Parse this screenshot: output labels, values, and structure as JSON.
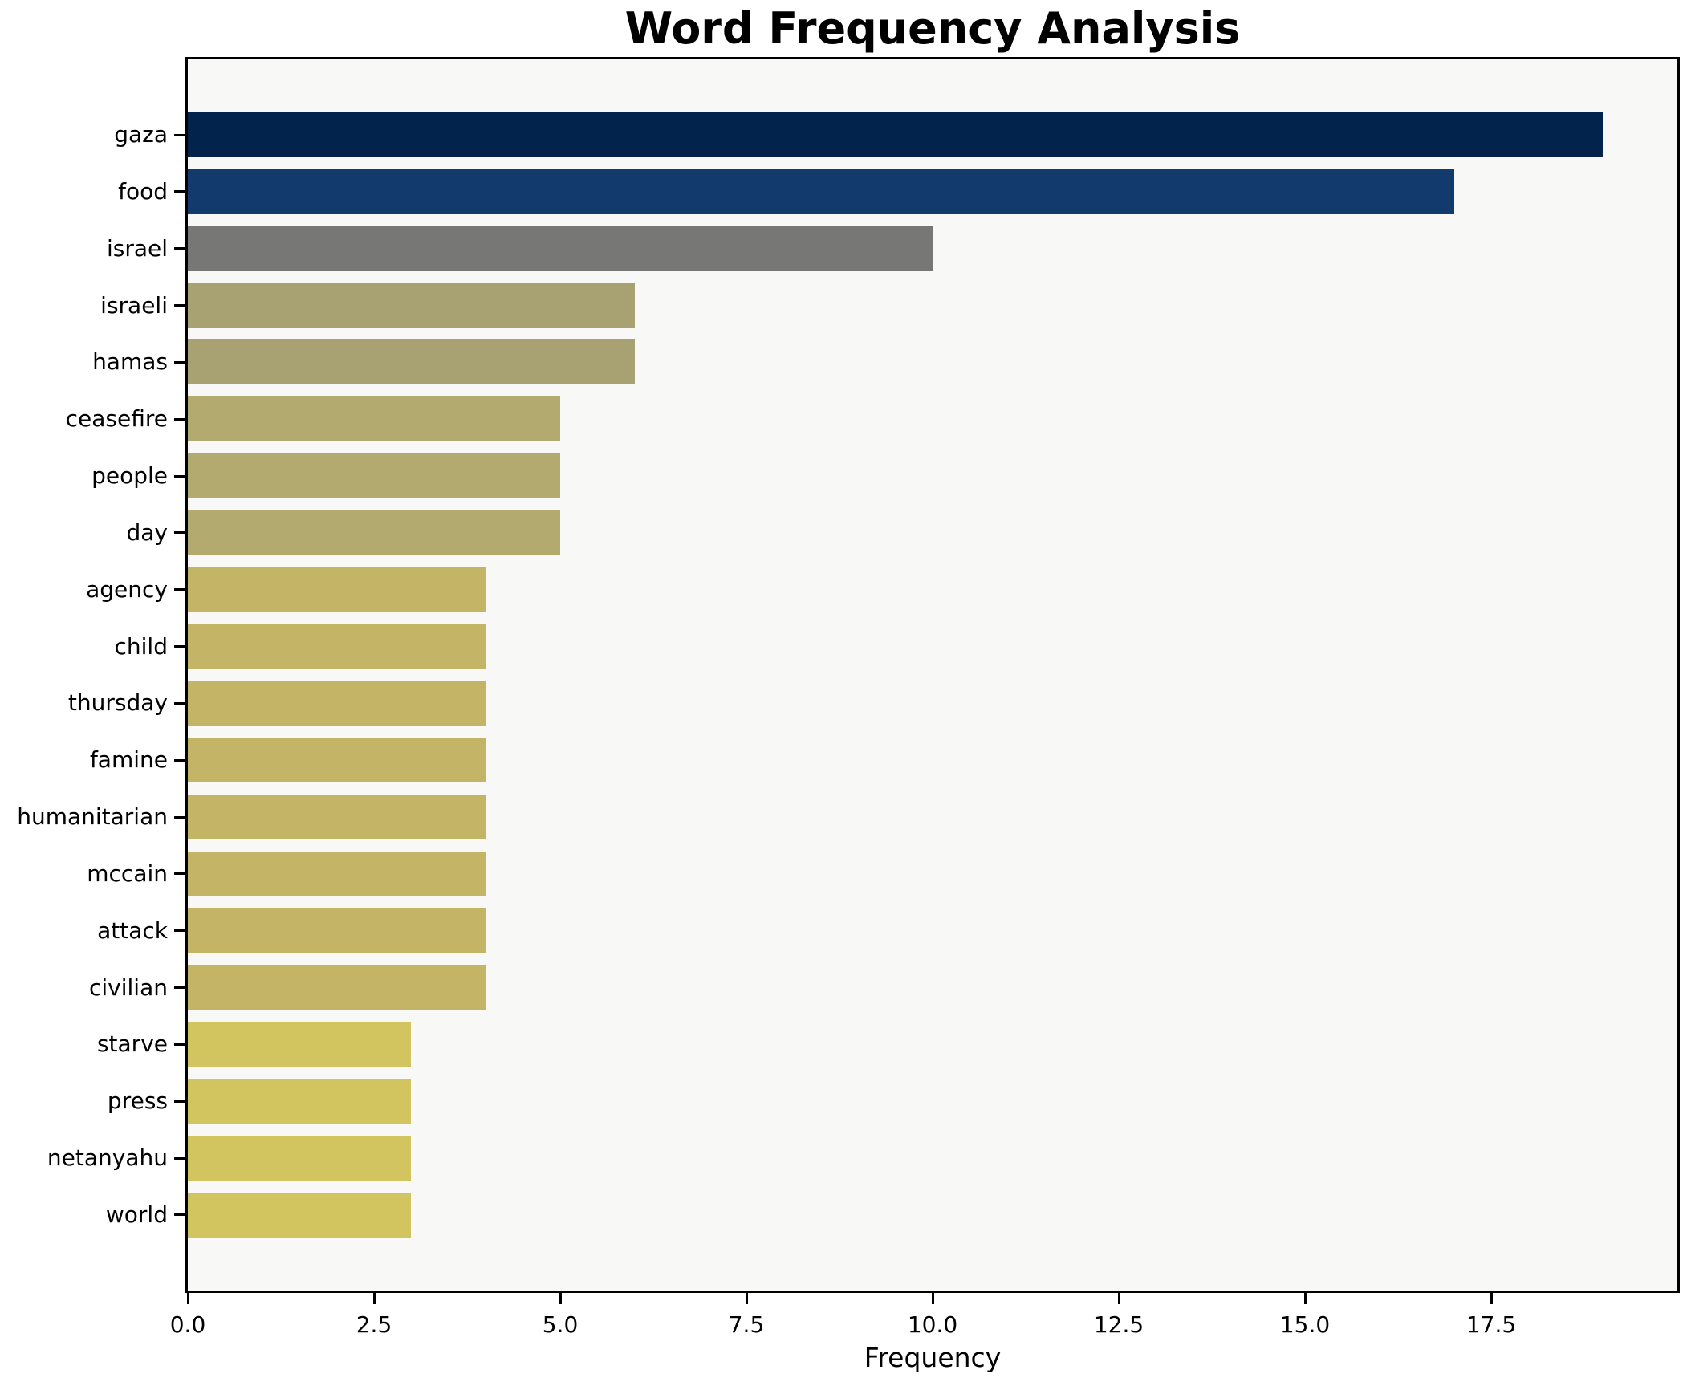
{
  "title": "Word Frequency Analysis",
  "xlabel": "Frequency",
  "chart_data": {
    "type": "bar",
    "orientation": "horizontal",
    "title": "Word Frequency Analysis",
    "xlabel": "Frequency",
    "ylabel": "",
    "grid": false,
    "legend": false,
    "plot_background": "#f8f8f7",
    "figure_background": "#ffffff",
    "xlim": [
      0,
      19.6
    ],
    "xticks": [
      {
        "value": 0,
        "label": "0.0"
      },
      {
        "value": 2.5,
        "label": "2.5"
      },
      {
        "value": 5,
        "label": "5.0"
      },
      {
        "value": 7.5,
        "label": "7.5"
      },
      {
        "value": 10,
        "label": "10.0"
      },
      {
        "value": 12.5,
        "label": "12.5"
      },
      {
        "value": 15,
        "label": "15.0"
      },
      {
        "value": 17.5,
        "label": "17.5"
      }
    ],
    "categories": [
      "gaza",
      "food",
      "israel",
      "israeli",
      "hamas",
      "ceasefire",
      "people",
      "day",
      "agency",
      "child",
      "thursday",
      "famine",
      "humanitarian",
      "mccain",
      "attack",
      "civilian",
      "starve",
      "press",
      "netanyahu",
      "world"
    ],
    "values": [
      19,
      17,
      10,
      6,
      6,
      5,
      5,
      5,
      4,
      4,
      4,
      4,
      4,
      4,
      4,
      4,
      3,
      3,
      3,
      3
    ],
    "bar_colors": [
      "#02234c",
      "#133a6d",
      "#777776",
      "#a8a171",
      "#a8a171",
      "#b3aa6f",
      "#b3aa6f",
      "#b3aa6f",
      "#c4b566",
      "#c4b566",
      "#c4b566",
      "#c4b566",
      "#c4b566",
      "#c4b566",
      "#c4b566",
      "#c4b566",
      "#d2c45f",
      "#d2c45f",
      "#d2c45f",
      "#d2c45f"
    ]
  }
}
